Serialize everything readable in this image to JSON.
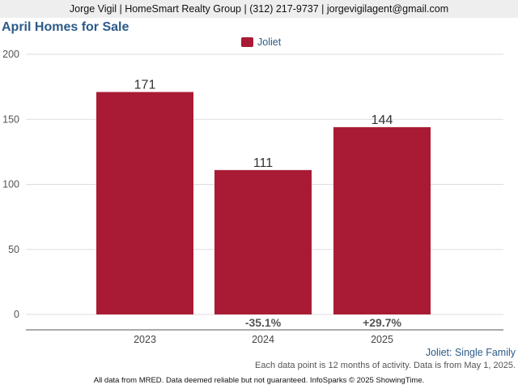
{
  "header": {
    "contact": "Jorge Vigil | HomeSmart Realty Group | (312) 217-9737 | jorgevigilagent@gmail.com"
  },
  "chart_data": {
    "type": "bar",
    "title": "April Homes for Sale",
    "categories": [
      "2023",
      "2024",
      "2025"
    ],
    "series": [
      {
        "name": "Joliet",
        "values": [
          171,
          111,
          144
        ],
        "color": "#a91b34"
      }
    ],
    "data_labels": [
      "171",
      "111",
      "144"
    ],
    "change_labels": [
      "",
      "-35.1%",
      "+29.7%"
    ],
    "y_ticks": [
      0,
      50,
      100,
      150,
      200
    ],
    "ylim": [
      0,
      200
    ],
    "grid": true,
    "legend_position": "top-center",
    "subtitle": "Joliet: Single Family",
    "note": "Each data point is 12 months of activity. Data is from May 1, 2025."
  },
  "footer": {
    "text": "All data from MRED. Data deemed reliable but not guaranteed. InfoSparks © 2025 ShowingTime."
  }
}
